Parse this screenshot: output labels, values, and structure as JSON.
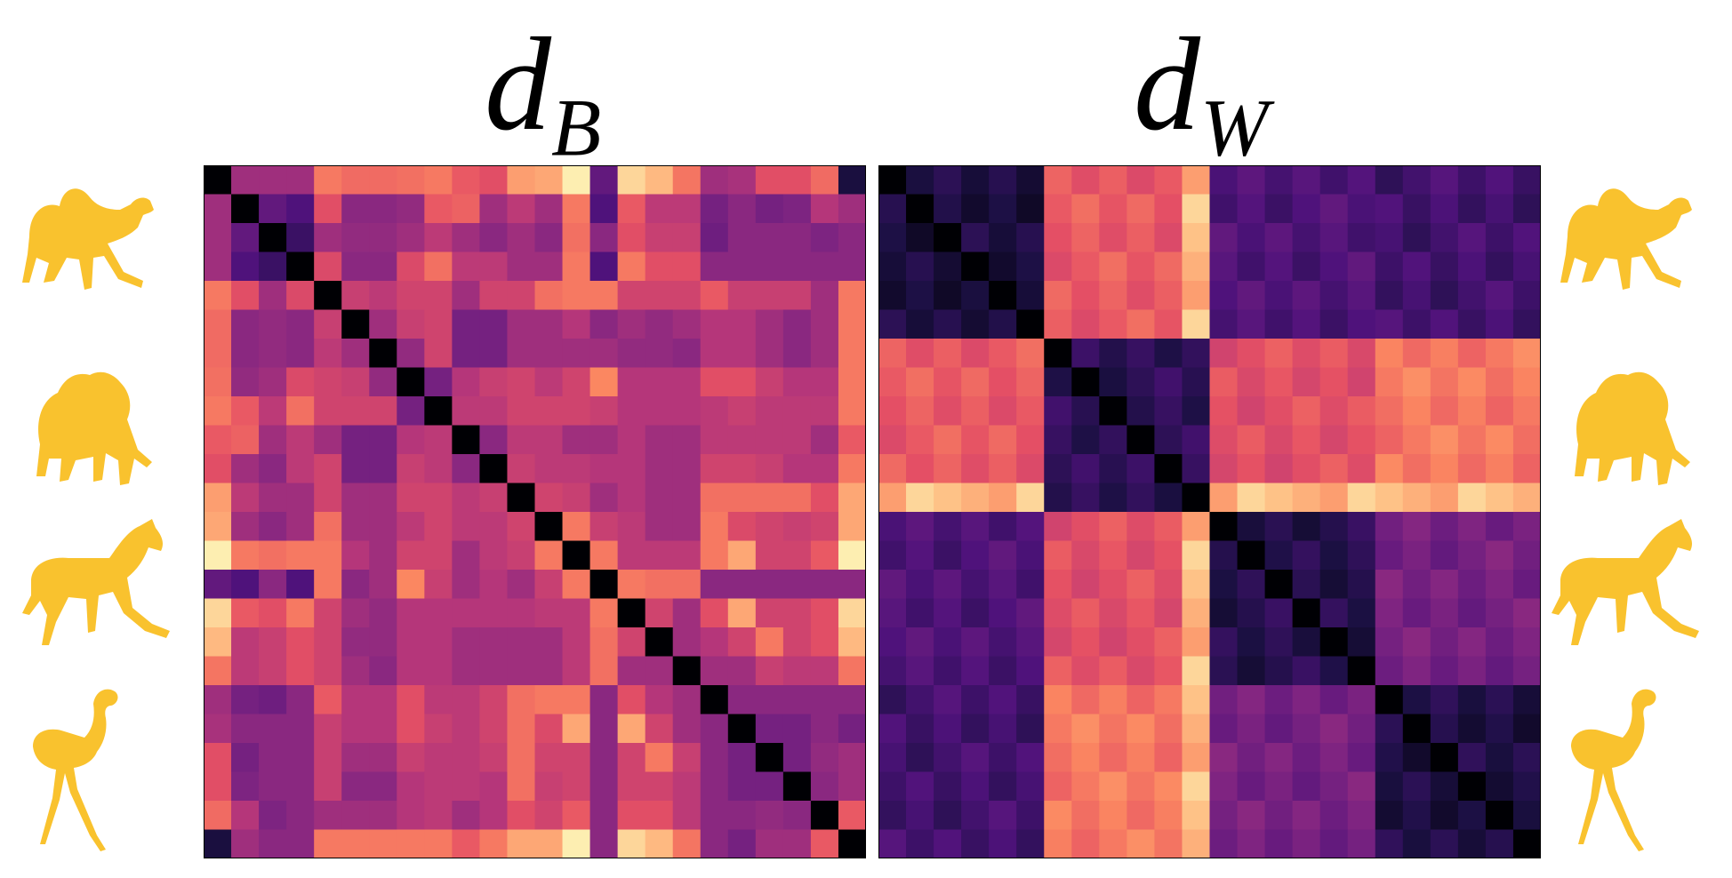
{
  "titles": {
    "left_base": "d",
    "left_sub": "B",
    "right_base": "d",
    "right_sub": "W"
  },
  "legend": {
    "shape_names": [
      "camel",
      "elephant",
      "horse",
      "flamingo"
    ],
    "shape_color": "#F9C22E"
  },
  "colors": {
    "diagonal": "#000004",
    "background": "#ffffff"
  },
  "chart_data": [
    {
      "type": "heatmap",
      "title": "d_B",
      "colormap": "magma",
      "normalized_value_range": [
        0,
        1
      ],
      "groups": [
        "camel",
        "elephant",
        "horse",
        "flamingo"
      ],
      "group_sizes": [
        6,
        6,
        6,
        6
      ],
      "n": 24,
      "values": [
        [
          0.0,
          0.45,
          0.45,
          0.45,
          0.72,
          0.69,
          0.69,
          0.7,
          0.72,
          0.65,
          0.62,
          0.8,
          0.82,
          0.97,
          0.3,
          0.92,
          0.86,
          0.71,
          0.45,
          0.47,
          0.62,
          0.62,
          0.69,
          0.12
        ],
        [
          0.45,
          0.0,
          0.3,
          0.25,
          0.62,
          0.4,
          0.4,
          0.42,
          0.65,
          0.67,
          0.45,
          0.52,
          0.45,
          0.72,
          0.25,
          0.65,
          0.52,
          0.52,
          0.35,
          0.4,
          0.35,
          0.37,
          0.5,
          0.45
        ],
        [
          0.45,
          0.3,
          0.0,
          0.2,
          0.45,
          0.42,
          0.42,
          0.45,
          0.52,
          0.45,
          0.4,
          0.45,
          0.4,
          0.7,
          0.4,
          0.62,
          0.55,
          0.55,
          0.33,
          0.4,
          0.4,
          0.4,
          0.37,
          0.4
        ],
        [
          0.45,
          0.25,
          0.2,
          0.0,
          0.6,
          0.4,
          0.4,
          0.6,
          0.7,
          0.52,
          0.52,
          0.45,
          0.45,
          0.72,
          0.25,
          0.72,
          0.62,
          0.62,
          0.4,
          0.4,
          0.4,
          0.4,
          0.4,
          0.4
        ],
        [
          0.72,
          0.62,
          0.45,
          0.6,
          0.0,
          0.55,
          0.52,
          0.57,
          0.57,
          0.45,
          0.57,
          0.57,
          0.7,
          0.72,
          0.72,
          0.57,
          0.57,
          0.57,
          0.65,
          0.55,
          0.55,
          0.55,
          0.45,
          0.72
        ],
        [
          0.69,
          0.4,
          0.42,
          0.4,
          0.55,
          0.0,
          0.45,
          0.55,
          0.57,
          0.35,
          0.35,
          0.45,
          0.45,
          0.5,
          0.4,
          0.45,
          0.42,
          0.45,
          0.5,
          0.5,
          0.45,
          0.4,
          0.45,
          0.72
        ],
        [
          0.69,
          0.4,
          0.42,
          0.4,
          0.52,
          0.45,
          0.0,
          0.42,
          0.57,
          0.35,
          0.35,
          0.45,
          0.45,
          0.45,
          0.45,
          0.42,
          0.42,
          0.4,
          0.5,
          0.5,
          0.45,
          0.4,
          0.45,
          0.72
        ],
        [
          0.7,
          0.42,
          0.45,
          0.6,
          0.57,
          0.55,
          0.42,
          0.0,
          0.35,
          0.5,
          0.55,
          0.57,
          0.52,
          0.57,
          0.75,
          0.5,
          0.5,
          0.5,
          0.62,
          0.62,
          0.55,
          0.5,
          0.5,
          0.72
        ],
        [
          0.72,
          0.65,
          0.52,
          0.7,
          0.57,
          0.57,
          0.57,
          0.35,
          0.0,
          0.52,
          0.52,
          0.57,
          0.57,
          0.57,
          0.55,
          0.5,
          0.5,
          0.5,
          0.52,
          0.55,
          0.52,
          0.52,
          0.52,
          0.72
        ],
        [
          0.65,
          0.67,
          0.45,
          0.52,
          0.45,
          0.35,
          0.35,
          0.5,
          0.52,
          0.0,
          0.4,
          0.52,
          0.52,
          0.45,
          0.45,
          0.5,
          0.45,
          0.45,
          0.52,
          0.52,
          0.52,
          0.52,
          0.45,
          0.65
        ],
        [
          0.62,
          0.45,
          0.4,
          0.52,
          0.57,
          0.35,
          0.35,
          0.55,
          0.52,
          0.4,
          0.0,
          0.55,
          0.52,
          0.52,
          0.5,
          0.5,
          0.45,
          0.45,
          0.57,
          0.57,
          0.55,
          0.5,
          0.5,
          0.72
        ],
        [
          0.8,
          0.52,
          0.45,
          0.45,
          0.57,
          0.45,
          0.45,
          0.57,
          0.57,
          0.52,
          0.55,
          0.0,
          0.57,
          0.55,
          0.45,
          0.5,
          0.45,
          0.45,
          0.7,
          0.7,
          0.7,
          0.7,
          0.62,
          0.82
        ],
        [
          0.82,
          0.45,
          0.4,
          0.45,
          0.7,
          0.45,
          0.45,
          0.52,
          0.57,
          0.52,
          0.52,
          0.57,
          0.0,
          0.72,
          0.55,
          0.52,
          0.45,
          0.45,
          0.72,
          0.6,
          0.57,
          0.55,
          0.57,
          0.82
        ],
        [
          0.97,
          0.72,
          0.7,
          0.72,
          0.72,
          0.5,
          0.45,
          0.57,
          0.57,
          0.45,
          0.52,
          0.55,
          0.72,
          0.0,
          0.72,
          0.52,
          0.52,
          0.52,
          0.72,
          0.82,
          0.57,
          0.57,
          0.65,
          0.97
        ],
        [
          0.3,
          0.25,
          0.4,
          0.25,
          0.72,
          0.4,
          0.45,
          0.75,
          0.55,
          0.45,
          0.5,
          0.45,
          0.55,
          0.72,
          0.0,
          0.72,
          0.7,
          0.7,
          0.4,
          0.4,
          0.4,
          0.4,
          0.4,
          0.4
        ],
        [
          0.92,
          0.65,
          0.62,
          0.72,
          0.57,
          0.45,
          0.42,
          0.5,
          0.5,
          0.5,
          0.5,
          0.5,
          0.52,
          0.52,
          0.72,
          0.0,
          0.57,
          0.45,
          0.62,
          0.82,
          0.57,
          0.57,
          0.62,
          0.92
        ],
        [
          0.86,
          0.52,
          0.55,
          0.62,
          0.57,
          0.42,
          0.42,
          0.5,
          0.5,
          0.45,
          0.45,
          0.45,
          0.45,
          0.52,
          0.7,
          0.57,
          0.0,
          0.45,
          0.5,
          0.57,
          0.72,
          0.57,
          0.62,
          0.86
        ],
        [
          0.71,
          0.52,
          0.55,
          0.62,
          0.57,
          0.45,
          0.4,
          0.5,
          0.5,
          0.45,
          0.45,
          0.45,
          0.45,
          0.52,
          0.7,
          0.45,
          0.45,
          0.0,
          0.45,
          0.45,
          0.55,
          0.52,
          0.52,
          0.71
        ],
        [
          0.45,
          0.35,
          0.33,
          0.4,
          0.65,
          0.5,
          0.5,
          0.62,
          0.52,
          0.52,
          0.57,
          0.7,
          0.72,
          0.72,
          0.4,
          0.62,
          0.5,
          0.45,
          0.0,
          0.4,
          0.4,
          0.4,
          0.4,
          0.4
        ],
        [
          0.47,
          0.4,
          0.4,
          0.4,
          0.55,
          0.5,
          0.5,
          0.62,
          0.55,
          0.52,
          0.57,
          0.7,
          0.6,
          0.82,
          0.4,
          0.82,
          0.57,
          0.45,
          0.4,
          0.0,
          0.35,
          0.35,
          0.4,
          0.35
        ],
        [
          0.62,
          0.35,
          0.4,
          0.4,
          0.55,
          0.45,
          0.45,
          0.55,
          0.52,
          0.52,
          0.55,
          0.7,
          0.57,
          0.57,
          0.4,
          0.57,
          0.72,
          0.55,
          0.4,
          0.35,
          0.0,
          0.35,
          0.42,
          0.45
        ],
        [
          0.62,
          0.37,
          0.4,
          0.4,
          0.55,
          0.4,
          0.4,
          0.5,
          0.52,
          0.52,
          0.5,
          0.7,
          0.55,
          0.57,
          0.4,
          0.57,
          0.57,
          0.52,
          0.4,
          0.35,
          0.35,
          0.0,
          0.4,
          0.45
        ],
        [
          0.69,
          0.5,
          0.37,
          0.4,
          0.45,
          0.45,
          0.45,
          0.5,
          0.52,
          0.45,
          0.5,
          0.62,
          0.57,
          0.65,
          0.4,
          0.62,
          0.62,
          0.52,
          0.4,
          0.4,
          0.42,
          0.4,
          0.0,
          0.65
        ],
        [
          0.12,
          0.45,
          0.4,
          0.4,
          0.72,
          0.72,
          0.72,
          0.72,
          0.72,
          0.65,
          0.72,
          0.82,
          0.82,
          0.97,
          0.4,
          0.92,
          0.86,
          0.71,
          0.4,
          0.35,
          0.45,
          0.45,
          0.65,
          0.0
        ]
      ]
    },
    {
      "type": "heatmap",
      "title": "d_W",
      "colormap": "magma",
      "normalized_value_range": [
        0,
        1
      ],
      "groups": [
        "camel",
        "elephant",
        "horse",
        "flamingo"
      ],
      "group_sizes": [
        6,
        6,
        6,
        6
      ],
      "n": 24,
      "block_mean_values": [
        [
          0.15,
          0.65,
          0.25,
          0.22
        ],
        [
          0.65,
          0.2,
          0.62,
          0.72
        ],
        [
          0.25,
          0.62,
          0.18,
          0.35
        ],
        [
          0.22,
          0.72,
          0.35,
          0.16
        ]
      ],
      "special_index": {
        "row_11_to_others": 0.92,
        "row_17_to_others": 0.45
      }
    }
  ]
}
